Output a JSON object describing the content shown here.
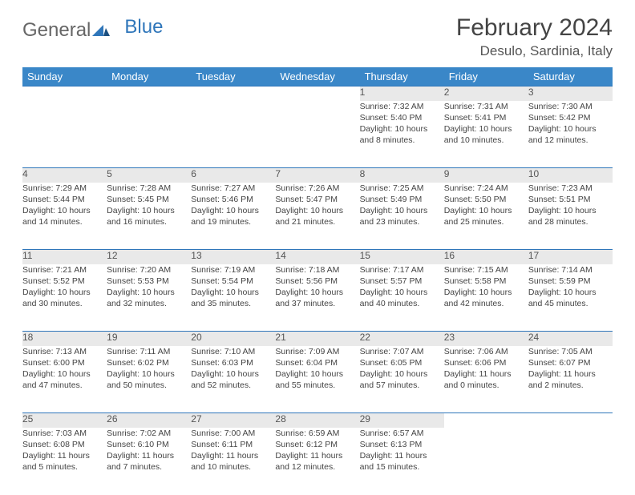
{
  "logo": {
    "general": "General",
    "blue": "Blue"
  },
  "title": "February 2024",
  "location": "Desulo, Sardinia, Italy",
  "colors": {
    "header_bg": "#3a87c8",
    "daynum_bg": "#e9e9e9",
    "rule": "#2f76ba",
    "text": "#444444"
  },
  "weekdays": [
    "Sunday",
    "Monday",
    "Tuesday",
    "Wednesday",
    "Thursday",
    "Friday",
    "Saturday"
  ],
  "weeks": [
    {
      "nums": [
        "",
        "",
        "",
        "",
        "1",
        "2",
        "3"
      ],
      "cells": [
        null,
        null,
        null,
        null,
        {
          "sunrise": "Sunrise: 7:32 AM",
          "sunset": "Sunset: 5:40 PM",
          "day1": "Daylight: 10 hours",
          "day2": "and 8 minutes."
        },
        {
          "sunrise": "Sunrise: 7:31 AM",
          "sunset": "Sunset: 5:41 PM",
          "day1": "Daylight: 10 hours",
          "day2": "and 10 minutes."
        },
        {
          "sunrise": "Sunrise: 7:30 AM",
          "sunset": "Sunset: 5:42 PM",
          "day1": "Daylight: 10 hours",
          "day2": "and 12 minutes."
        }
      ]
    },
    {
      "nums": [
        "4",
        "5",
        "6",
        "7",
        "8",
        "9",
        "10"
      ],
      "cells": [
        {
          "sunrise": "Sunrise: 7:29 AM",
          "sunset": "Sunset: 5:44 PM",
          "day1": "Daylight: 10 hours",
          "day2": "and 14 minutes."
        },
        {
          "sunrise": "Sunrise: 7:28 AM",
          "sunset": "Sunset: 5:45 PM",
          "day1": "Daylight: 10 hours",
          "day2": "and 16 minutes."
        },
        {
          "sunrise": "Sunrise: 7:27 AM",
          "sunset": "Sunset: 5:46 PM",
          "day1": "Daylight: 10 hours",
          "day2": "and 19 minutes."
        },
        {
          "sunrise": "Sunrise: 7:26 AM",
          "sunset": "Sunset: 5:47 PM",
          "day1": "Daylight: 10 hours",
          "day2": "and 21 minutes."
        },
        {
          "sunrise": "Sunrise: 7:25 AM",
          "sunset": "Sunset: 5:49 PM",
          "day1": "Daylight: 10 hours",
          "day2": "and 23 minutes."
        },
        {
          "sunrise": "Sunrise: 7:24 AM",
          "sunset": "Sunset: 5:50 PM",
          "day1": "Daylight: 10 hours",
          "day2": "and 25 minutes."
        },
        {
          "sunrise": "Sunrise: 7:23 AM",
          "sunset": "Sunset: 5:51 PM",
          "day1": "Daylight: 10 hours",
          "day2": "and 28 minutes."
        }
      ]
    },
    {
      "nums": [
        "11",
        "12",
        "13",
        "14",
        "15",
        "16",
        "17"
      ],
      "cells": [
        {
          "sunrise": "Sunrise: 7:21 AM",
          "sunset": "Sunset: 5:52 PM",
          "day1": "Daylight: 10 hours",
          "day2": "and 30 minutes."
        },
        {
          "sunrise": "Sunrise: 7:20 AM",
          "sunset": "Sunset: 5:53 PM",
          "day1": "Daylight: 10 hours",
          "day2": "and 32 minutes."
        },
        {
          "sunrise": "Sunrise: 7:19 AM",
          "sunset": "Sunset: 5:54 PM",
          "day1": "Daylight: 10 hours",
          "day2": "and 35 minutes."
        },
        {
          "sunrise": "Sunrise: 7:18 AM",
          "sunset": "Sunset: 5:56 PM",
          "day1": "Daylight: 10 hours",
          "day2": "and 37 minutes."
        },
        {
          "sunrise": "Sunrise: 7:17 AM",
          "sunset": "Sunset: 5:57 PM",
          "day1": "Daylight: 10 hours",
          "day2": "and 40 minutes."
        },
        {
          "sunrise": "Sunrise: 7:15 AM",
          "sunset": "Sunset: 5:58 PM",
          "day1": "Daylight: 10 hours",
          "day2": "and 42 minutes."
        },
        {
          "sunrise": "Sunrise: 7:14 AM",
          "sunset": "Sunset: 5:59 PM",
          "day1": "Daylight: 10 hours",
          "day2": "and 45 minutes."
        }
      ]
    },
    {
      "nums": [
        "18",
        "19",
        "20",
        "21",
        "22",
        "23",
        "24"
      ],
      "cells": [
        {
          "sunrise": "Sunrise: 7:13 AM",
          "sunset": "Sunset: 6:00 PM",
          "day1": "Daylight: 10 hours",
          "day2": "and 47 minutes."
        },
        {
          "sunrise": "Sunrise: 7:11 AM",
          "sunset": "Sunset: 6:02 PM",
          "day1": "Daylight: 10 hours",
          "day2": "and 50 minutes."
        },
        {
          "sunrise": "Sunrise: 7:10 AM",
          "sunset": "Sunset: 6:03 PM",
          "day1": "Daylight: 10 hours",
          "day2": "and 52 minutes."
        },
        {
          "sunrise": "Sunrise: 7:09 AM",
          "sunset": "Sunset: 6:04 PM",
          "day1": "Daylight: 10 hours",
          "day2": "and 55 minutes."
        },
        {
          "sunrise": "Sunrise: 7:07 AM",
          "sunset": "Sunset: 6:05 PM",
          "day1": "Daylight: 10 hours",
          "day2": "and 57 minutes."
        },
        {
          "sunrise": "Sunrise: 7:06 AM",
          "sunset": "Sunset: 6:06 PM",
          "day1": "Daylight: 11 hours",
          "day2": "and 0 minutes."
        },
        {
          "sunrise": "Sunrise: 7:05 AM",
          "sunset": "Sunset: 6:07 PM",
          "day1": "Daylight: 11 hours",
          "day2": "and 2 minutes."
        }
      ]
    },
    {
      "nums": [
        "25",
        "26",
        "27",
        "28",
        "29",
        "",
        ""
      ],
      "cells": [
        {
          "sunrise": "Sunrise: 7:03 AM",
          "sunset": "Sunset: 6:08 PM",
          "day1": "Daylight: 11 hours",
          "day2": "and 5 minutes."
        },
        {
          "sunrise": "Sunrise: 7:02 AM",
          "sunset": "Sunset: 6:10 PM",
          "day1": "Daylight: 11 hours",
          "day2": "and 7 minutes."
        },
        {
          "sunrise": "Sunrise: 7:00 AM",
          "sunset": "Sunset: 6:11 PM",
          "day1": "Daylight: 11 hours",
          "day2": "and 10 minutes."
        },
        {
          "sunrise": "Sunrise: 6:59 AM",
          "sunset": "Sunset: 6:12 PM",
          "day1": "Daylight: 11 hours",
          "day2": "and 12 minutes."
        },
        {
          "sunrise": "Sunrise: 6:57 AM",
          "sunset": "Sunset: 6:13 PM",
          "day1": "Daylight: 11 hours",
          "day2": "and 15 minutes."
        },
        null,
        null
      ]
    }
  ]
}
